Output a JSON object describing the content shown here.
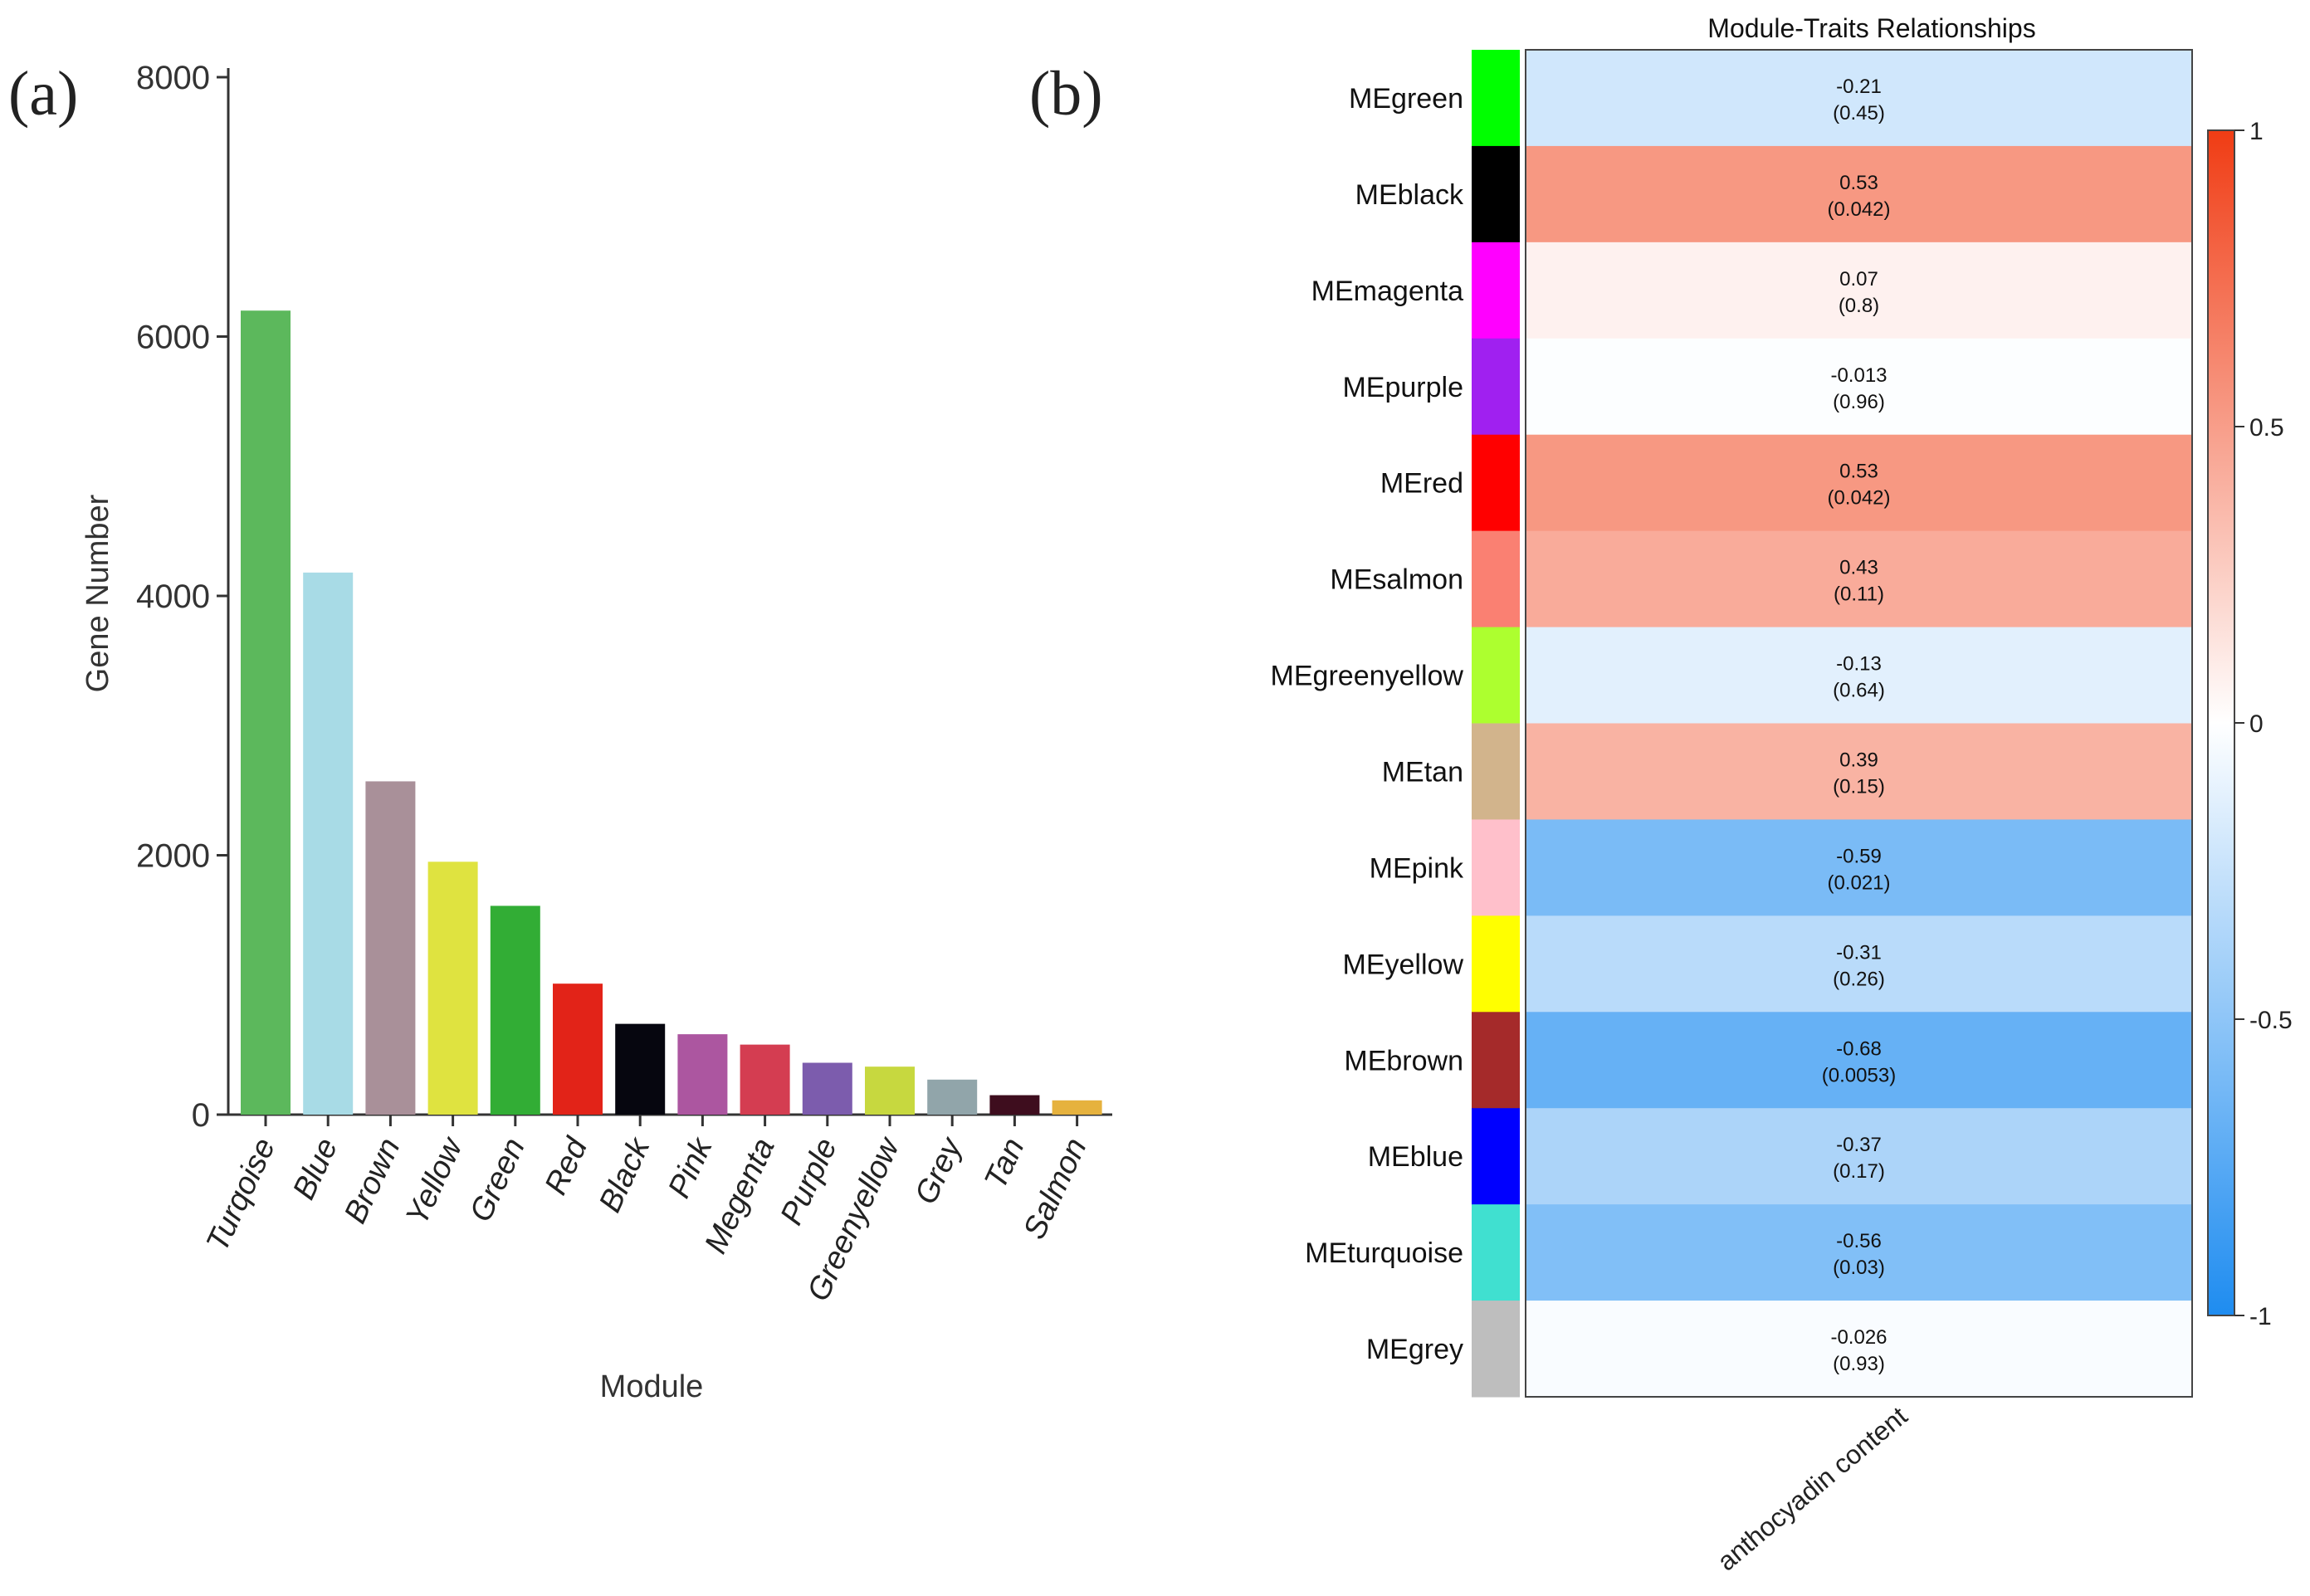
{
  "panels": {
    "a_label": "(a)",
    "b_label": "(b)"
  },
  "chart_data": [
    {
      "type": "bar",
      "title": "",
      "xlabel": "Module",
      "ylabel": "Gene Number",
      "ylim": [
        0,
        8000
      ],
      "yticks": [
        0,
        2000,
        4000,
        6000,
        8000
      ],
      "categories": [
        "Turqoise",
        "Blue",
        "Brown",
        "Yellow",
        "Green",
        "Red",
        "Black",
        "Pink",
        "Megenta",
        "Purple",
        "Greenyellow",
        "Grey",
        "Tan",
        "Salmon"
      ],
      "values": [
        6200,
        4180,
        2570,
        1950,
        1610,
        1010,
        700,
        620,
        540,
        400,
        370,
        270,
        150,
        110
      ],
      "colors": [
        "#5cb85c",
        "#a8dbe6",
        "#a99099",
        "#dfe340",
        "#32ad35",
        "#e22318",
        "#06060f",
        "#ac56a0",
        "#d43d51",
        "#7c5cad",
        "#c7d83f",
        "#91a5aa",
        "#3e0d1e",
        "#e6b23e"
      ]
    },
    {
      "type": "heatmap",
      "title": "Module-Traits Relationships",
      "xlabel": "anthocyadin content",
      "rows": [
        {
          "module": "MEgreen",
          "color": "#00ff00",
          "r": -0.21,
          "p": 0.45,
          "r_label": "-0.21",
          "p_label": "(0.45)"
        },
        {
          "module": "MEblack",
          "color": "#000000",
          "r": 0.53,
          "p": 0.042,
          "r_label": "0.53",
          "p_label": "(0.042)"
        },
        {
          "module": "MEmagenta",
          "color": "#ff00ff",
          "r": 0.07,
          "p": 0.8,
          "r_label": "0.07",
          "p_label": "(0.8)"
        },
        {
          "module": "MEpurple",
          "color": "#a020f0",
          "r": -0.013,
          "p": 0.96,
          "r_label": "-0.013",
          "p_label": "(0.96)"
        },
        {
          "module": "MEred",
          "color": "#ff0000",
          "r": 0.53,
          "p": 0.042,
          "r_label": "0.53",
          "p_label": "(0.042)"
        },
        {
          "module": "MEsalmon",
          "color": "#fa8072",
          "r": 0.43,
          "p": 0.11,
          "r_label": "0.43",
          "p_label": "(0.11)"
        },
        {
          "module": "MEgreenyellow",
          "color": "#adff2f",
          "r": -0.13,
          "p": 0.64,
          "r_label": "-0.13",
          "p_label": "(0.64)"
        },
        {
          "module": "MEtan",
          "color": "#d2b48c",
          "r": 0.39,
          "p": 0.15,
          "r_label": "0.39",
          "p_label": "(0.15)"
        },
        {
          "module": "MEpink",
          "color": "#ffc0cb",
          "r": -0.59,
          "p": 0.021,
          "r_label": "-0.59",
          "p_label": "(0.021)"
        },
        {
          "module": "MEyellow",
          "color": "#ffff00",
          "r": -0.31,
          "p": 0.26,
          "r_label": "-0.31",
          "p_label": "(0.26)"
        },
        {
          "module": "MEbrown",
          "color": "#a52a2a",
          "r": -0.68,
          "p": 0.0053,
          "r_label": "-0.68",
          "p_label": "(0.0053)"
        },
        {
          "module": "MEblue",
          "color": "#0000ff",
          "r": -0.37,
          "p": 0.17,
          "r_label": "-0.37",
          "p_label": "(0.17)"
        },
        {
          "module": "MEturquoise",
          "color": "#40e0d0",
          "r": -0.56,
          "p": 0.03,
          "r_label": "-0.56",
          "p_label": "(0.03)"
        },
        {
          "module": "MEgrey",
          "color": "#bebebe",
          "r": -0.026,
          "p": 0.93,
          "r_label": "-0.026",
          "p_label": "(0.93)"
        }
      ],
      "colorbar": {
        "range": [
          -1,
          1
        ],
        "ticks": [
          1,
          0.5,
          0,
          -0.5,
          -1
        ],
        "tick_labels": [
          "1",
          "0.5",
          "0",
          "-0.5",
          "-1"
        ],
        "low_color": "#1e8cf0",
        "mid_color": "#ffffff",
        "high_color": "#f03c14"
      }
    }
  ]
}
